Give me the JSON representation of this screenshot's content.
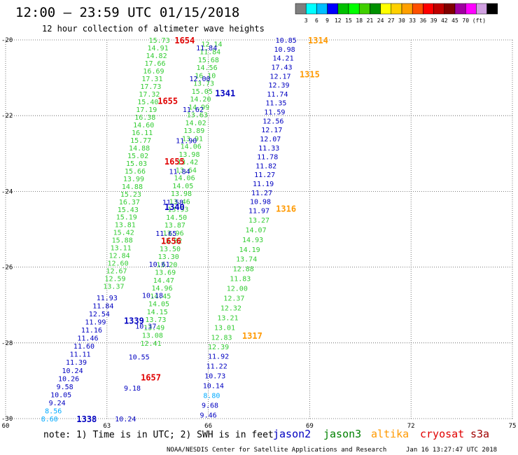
{
  "header": {
    "title": "12:00 – 23:59 UTC 01/15/2018",
    "subtitle": "12 hour collection of altimeter wave heights"
  },
  "colorbar": {
    "colors": [
      "#7f7f7f",
      "#00ffff",
      "#00bfff",
      "#0000ff",
      "#00c000",
      "#00ff00",
      "#40d000",
      "#009000",
      "#ffff00",
      "#ffd000",
      "#ffa000",
      "#ff5000",
      "#ff0000",
      "#c00000",
      "#800000",
      "#a000a0",
      "#ff00ff",
      "#d0a0e0",
      "#000000"
    ],
    "labels": [
      "3",
      "6",
      "9",
      "12",
      "15",
      "18",
      "21",
      "24",
      "27",
      "30",
      "33",
      "36",
      "39",
      "42",
      "45",
      "70",
      "(ft)"
    ]
  },
  "footer": {
    "note": "note: 1) Time is in UTC; 2) SWH is in feet",
    "satellites": [
      {
        "name": "jason2",
        "color": "#0000c0"
      },
      {
        "name": "jason3",
        "color": "#008000"
      },
      {
        "name": "altika",
        "color": "#ff9900"
      },
      {
        "name": "cryosat",
        "color": "#e00000"
      },
      {
        "name": "s3a",
        "color": "#a00000"
      }
    ],
    "credit": "NOAA/NESDIS Center for Satellite Applications and Research",
    "timestamp": "Jan 16 13:27:47 UTC 2018"
  },
  "chart_data": {
    "type": "scatter",
    "title": "12:00 – 23:59 UTC 01/15/2018",
    "subtitle": "12 hour collection of altimeter wave heights",
    "xlim": [
      60,
      75
    ],
    "ylim": [
      -30,
      -20
    ],
    "x_ticks": [
      60,
      63,
      66,
      69,
      72,
      75
    ],
    "y_ticks": [
      -20,
      -22,
      -24,
      -26,
      -28,
      -30
    ],
    "grid": true,
    "units": "ft",
    "pass_labels": [
      {
        "text": "1654",
        "sat": "cryosat",
        "x": 65.3,
        "y": -20.0
      },
      {
        "text": "1314",
        "sat": "altika",
        "x": 69.25,
        "y": -20.0
      },
      {
        "text": "1315",
        "sat": "altika",
        "x": 69.0,
        "y": -20.9
      },
      {
        "text": "1341",
        "sat": "jason2",
        "x": 66.5,
        "y": -21.4
      },
      {
        "text": "1655",
        "sat": "cryosat",
        "x": 64.8,
        "y": -21.6
      },
      {
        "text": "1655",
        "sat": "cryosat",
        "x": 65.0,
        "y": -23.2
      },
      {
        "text": "1340",
        "sat": "jason2",
        "x": 65.0,
        "y": -24.4
      },
      {
        "text": "1316",
        "sat": "altika",
        "x": 68.3,
        "y": -24.45
      },
      {
        "text": "1656",
        "sat": "cryosat",
        "x": 64.9,
        "y": -25.3
      },
      {
        "text": "1339",
        "sat": "jason2",
        "x": 63.8,
        "y": -27.4
      },
      {
        "text": "1317",
        "sat": "altika",
        "x": 67.3,
        "y": -27.8
      },
      {
        "text": "1657",
        "sat": "cryosat",
        "x": 64.3,
        "y": -28.9
      },
      {
        "text": "1338",
        "sat": "jason2",
        "x": 62.4,
        "y": -30.0
      }
    ],
    "tracks": [
      {
        "sat": "jason3",
        "x0": 64.55,
        "y0": -20.0,
        "x1": 63.2,
        "y1": -26.5,
        "values": [
          "15.73",
          "14.91",
          "14.82",
          "17.66",
          "16.69",
          "17.31",
          "17.73",
          "17.32",
          "15.40",
          "17.19",
          "16.38",
          "14.60",
          "16.11",
          "15.77",
          "14.88",
          "15.02",
          "15.03",
          "15.66",
          "13.99",
          "14.88",
          "15.23",
          "16.37",
          "15.43",
          "15.19",
          "13.81",
          "15.42",
          "15.88",
          "13.11",
          "12.84",
          "12.60",
          "12.67",
          "12.59",
          "13.37"
        ]
      },
      {
        "sat": "jason3",
        "x0": 66.1,
        "y0": -20.1,
        "x1": 64.3,
        "y1": -28.0,
        "values": [
          "12.14",
          "11.84",
          "15.68",
          "14.56",
          "16.10",
          "13.73",
          "15.05",
          "14.20",
          "14.99",
          "13.63",
          "14.02",
          "13.89",
          "13.91",
          "14.06",
          "13.98",
          "13.42",
          "13.64",
          "14.06",
          "14.05",
          "13.98",
          "13.46",
          "13.93",
          "14.50",
          "13.87",
          "13.96",
          "13.82",
          "13.50",
          "13.30",
          "13.20",
          "13.69",
          "14.47",
          "14.96",
          "14.45",
          "14.05",
          "14.15",
          "13.73",
          "13.49",
          "13.08",
          "12.41"
        ]
      },
      {
        "sat": "jason2",
        "x0": 65.95,
        "y0": -20.2,
        "x1": 63.55,
        "y1": -30.0,
        "values": [
          "11.84",
          "12.00",
          "11.62",
          "11.90",
          "11.84",
          "11.58",
          "11.65",
          "10.61",
          "10.18",
          "10.37",
          "10.55",
          "9.18",
          "10.24"
        ]
      },
      {
        "sat": "jason2",
        "x0": 63.0,
        "y0": -26.8,
        "x1": 61.3,
        "y1": -30.0,
        "values": [
          "11.93",
          "11.84",
          "12.54",
          "11.99",
          "11.16",
          "11.46",
          "11.60",
          "11.11",
          "11.39",
          "10.24",
          "10.26",
          "9.58",
          "10.05",
          "9.24",
          "8.56",
          "8.60"
        ]
      },
      {
        "sat": "jason2",
        "x0": 68.3,
        "y0": -20.0,
        "x1": 67.5,
        "y1": -24.5,
        "values": [
          "10.85",
          "10.98",
          "14.21",
          "17.43",
          "12.17",
          "12.39",
          "11.74",
          "11.35",
          "11.59",
          "12.56",
          "12.17",
          "12.07",
          "11.33",
          "11.78",
          "11.82",
          "11.27",
          "11.19",
          "11.27",
          "10.98",
          "11.97"
        ]
      },
      {
        "sat": "jason3",
        "x0": 67.5,
        "y0": -24.75,
        "x1": 66.3,
        "y1": -28.1,
        "values": [
          "13.27",
          "14.07",
          "14.93",
          "14.19",
          "13.74",
          "12.88",
          "11.83",
          "12.00",
          "12.37",
          "12.32",
          "13.21",
          "13.01",
          "12.83",
          "12.39"
        ]
      },
      {
        "sat": "jason2",
        "x0": 66.3,
        "y0": -28.35,
        "x1": 66.0,
        "y1": -29.9,
        "values": [
          "11.92",
          "11.22",
          "10.73",
          "10.14",
          "8.80",
          "9.68",
          "9.46"
        ]
      }
    ]
  }
}
